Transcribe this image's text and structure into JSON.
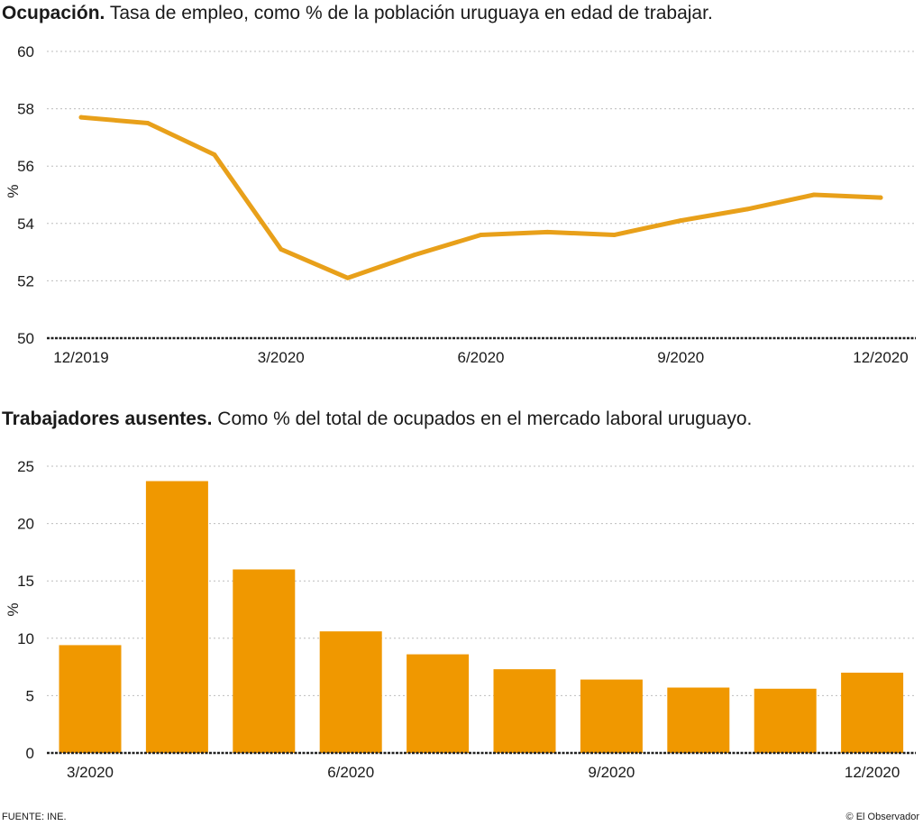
{
  "chart_data": [
    {
      "type": "line",
      "title": "Ocupación.",
      "subtitle": "Tasa de empleo, como % de la población uruguaya en edad de trabajar.",
      "ylabel": "%",
      "ylim": [
        50,
        60
      ],
      "yticks": [
        50,
        52,
        54,
        56,
        58,
        60
      ],
      "x_tick_labels": [
        "12/2019",
        "3/2020",
        "6/2020",
        "9/2020",
        "12/2020"
      ],
      "x": [
        "12/2019",
        "1/2020",
        "2/2020",
        "3/2020",
        "4/2020",
        "5/2020",
        "6/2020",
        "7/2020",
        "8/2020",
        "9/2020",
        "10/2020",
        "11/2020",
        "12/2020"
      ],
      "values": [
        57.7,
        57.5,
        56.4,
        53.1,
        52.1,
        52.9,
        53.6,
        53.7,
        53.6,
        54.1,
        54.5,
        55.0,
        54.9
      ],
      "color": "#e8a01a",
      "grid": true
    },
    {
      "type": "bar",
      "title": "Trabajadores ausentes.",
      "subtitle": "Como % del total de ocupados en el mercado laboral uruguayo.",
      "ylabel": "%",
      "ylim": [
        0,
        25
      ],
      "yticks": [
        0,
        5,
        10,
        15,
        20,
        25
      ],
      "x_tick_labels": [
        "3/2020",
        "6/2020",
        "9/2020",
        "12/2020"
      ],
      "categories": [
        "3/2020",
        "4/2020",
        "5/2020",
        "6/2020",
        "7/2020",
        "8/2020",
        "9/2020",
        "10/2020",
        "11/2020",
        "12/2020"
      ],
      "values": [
        9.4,
        23.7,
        16.0,
        10.6,
        8.6,
        7.3,
        6.4,
        5.7,
        5.6,
        7.0
      ],
      "color": "#f09800",
      "grid": true
    }
  ],
  "footer": {
    "source": "FUENTE: INE.",
    "credit": "© El Observador"
  }
}
